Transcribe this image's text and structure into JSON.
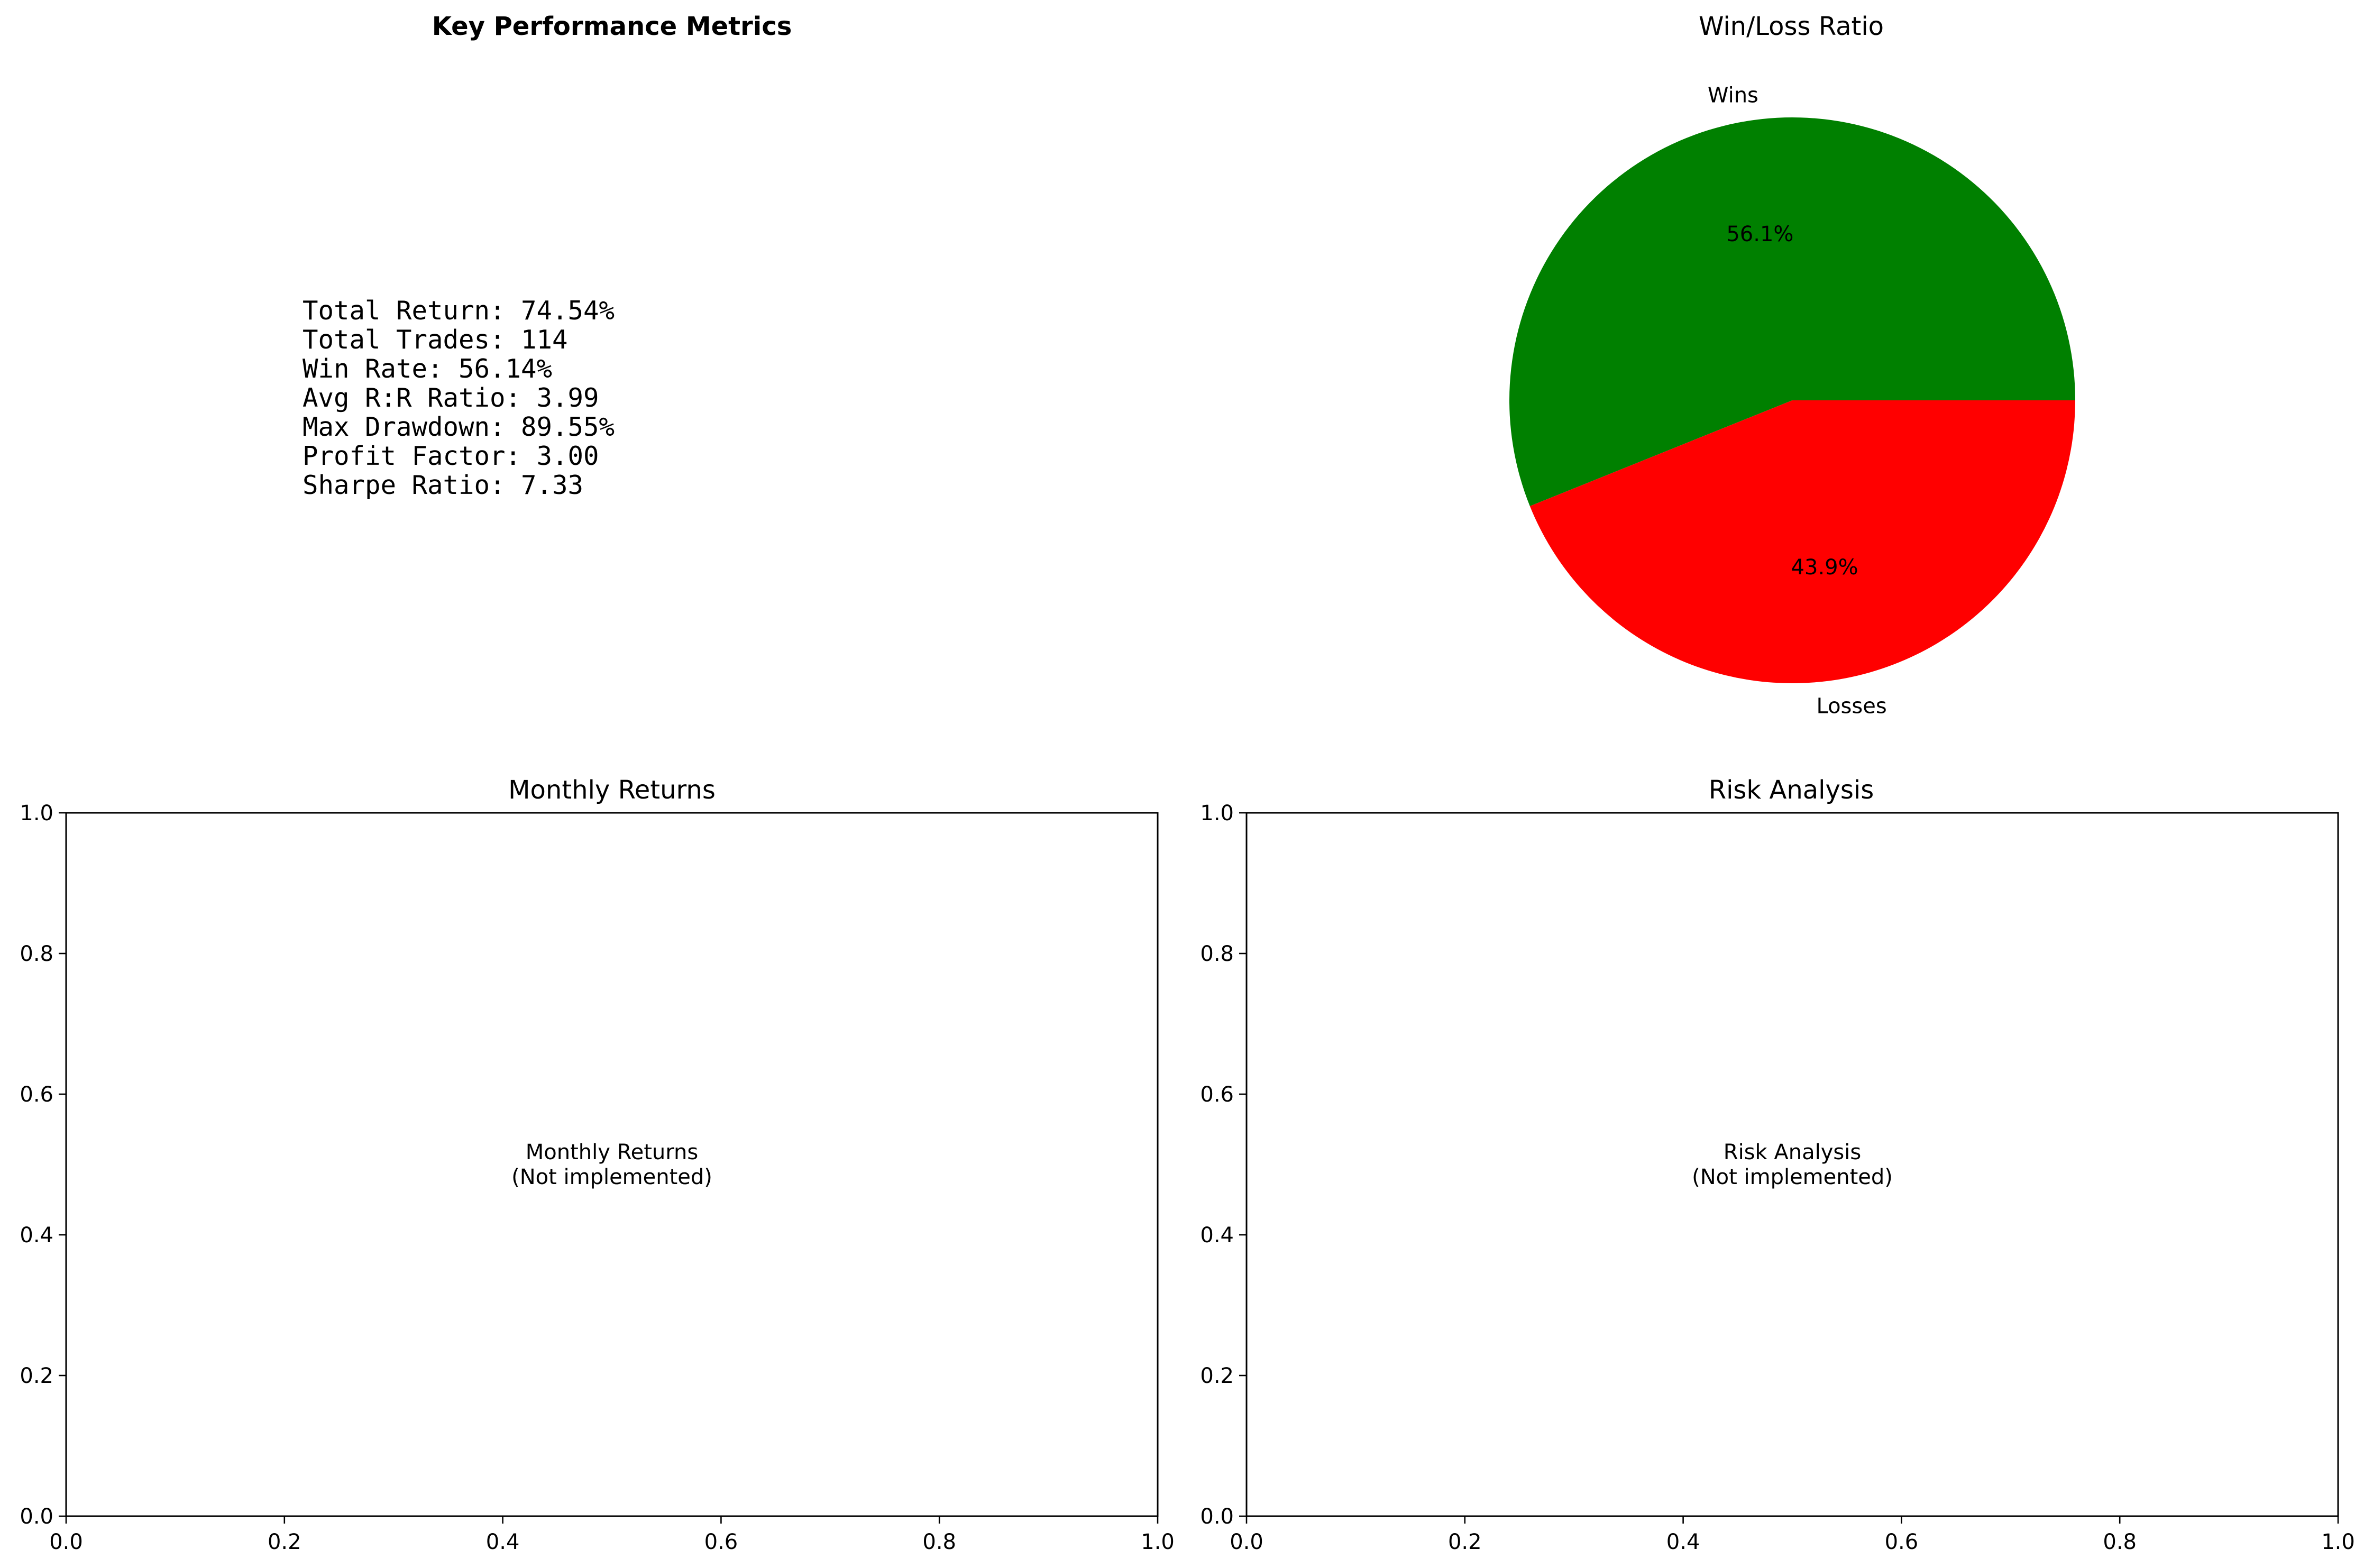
{
  "chart_data": [
    {
      "type": "table",
      "title": "Key Performance Metrics",
      "lines": [
        "Total Return: 74.54%",
        "Total Trades: 114",
        "Win Rate: 56.14%",
        "Avg R:R Ratio: 3.99",
        "Max Drawdown: 89.55%",
        "Profit Factor: 3.00",
        "Sharpe Ratio: 7.33"
      ]
    },
    {
      "type": "pie",
      "title": "Win/Loss Ratio",
      "slices": [
        {
          "label": "Wins",
          "value": 56.1,
          "pct_label": "56.1%",
          "color": "#008000"
        },
        {
          "label": "Losses",
          "value": 43.9,
          "pct_label": "43.9%",
          "color": "#ff0000"
        }
      ]
    },
    {
      "type": "line",
      "title": "Monthly Returns",
      "placeholder": [
        "Monthly Returns",
        "(Not implemented)"
      ],
      "xlim": [
        0.0,
        1.0
      ],
      "ylim": [
        0.0,
        1.0
      ],
      "xticks": [
        "0.0",
        "0.2",
        "0.4",
        "0.6",
        "0.8",
        "1.0"
      ],
      "yticks": [
        "0.0",
        "0.2",
        "0.4",
        "0.6",
        "0.8",
        "1.0"
      ]
    },
    {
      "type": "line",
      "title": "Risk Analysis",
      "placeholder": [
        "Risk Analysis",
        "(Not implemented)"
      ],
      "xlim": [
        0.0,
        1.0
      ],
      "ylim": [
        0.0,
        1.0
      ],
      "xticks": [
        "0.0",
        "0.2",
        "0.4",
        "0.6",
        "0.8",
        "1.0"
      ],
      "yticks": [
        "0.0",
        "0.2",
        "0.4",
        "0.6",
        "0.8",
        "1.0"
      ]
    }
  ]
}
